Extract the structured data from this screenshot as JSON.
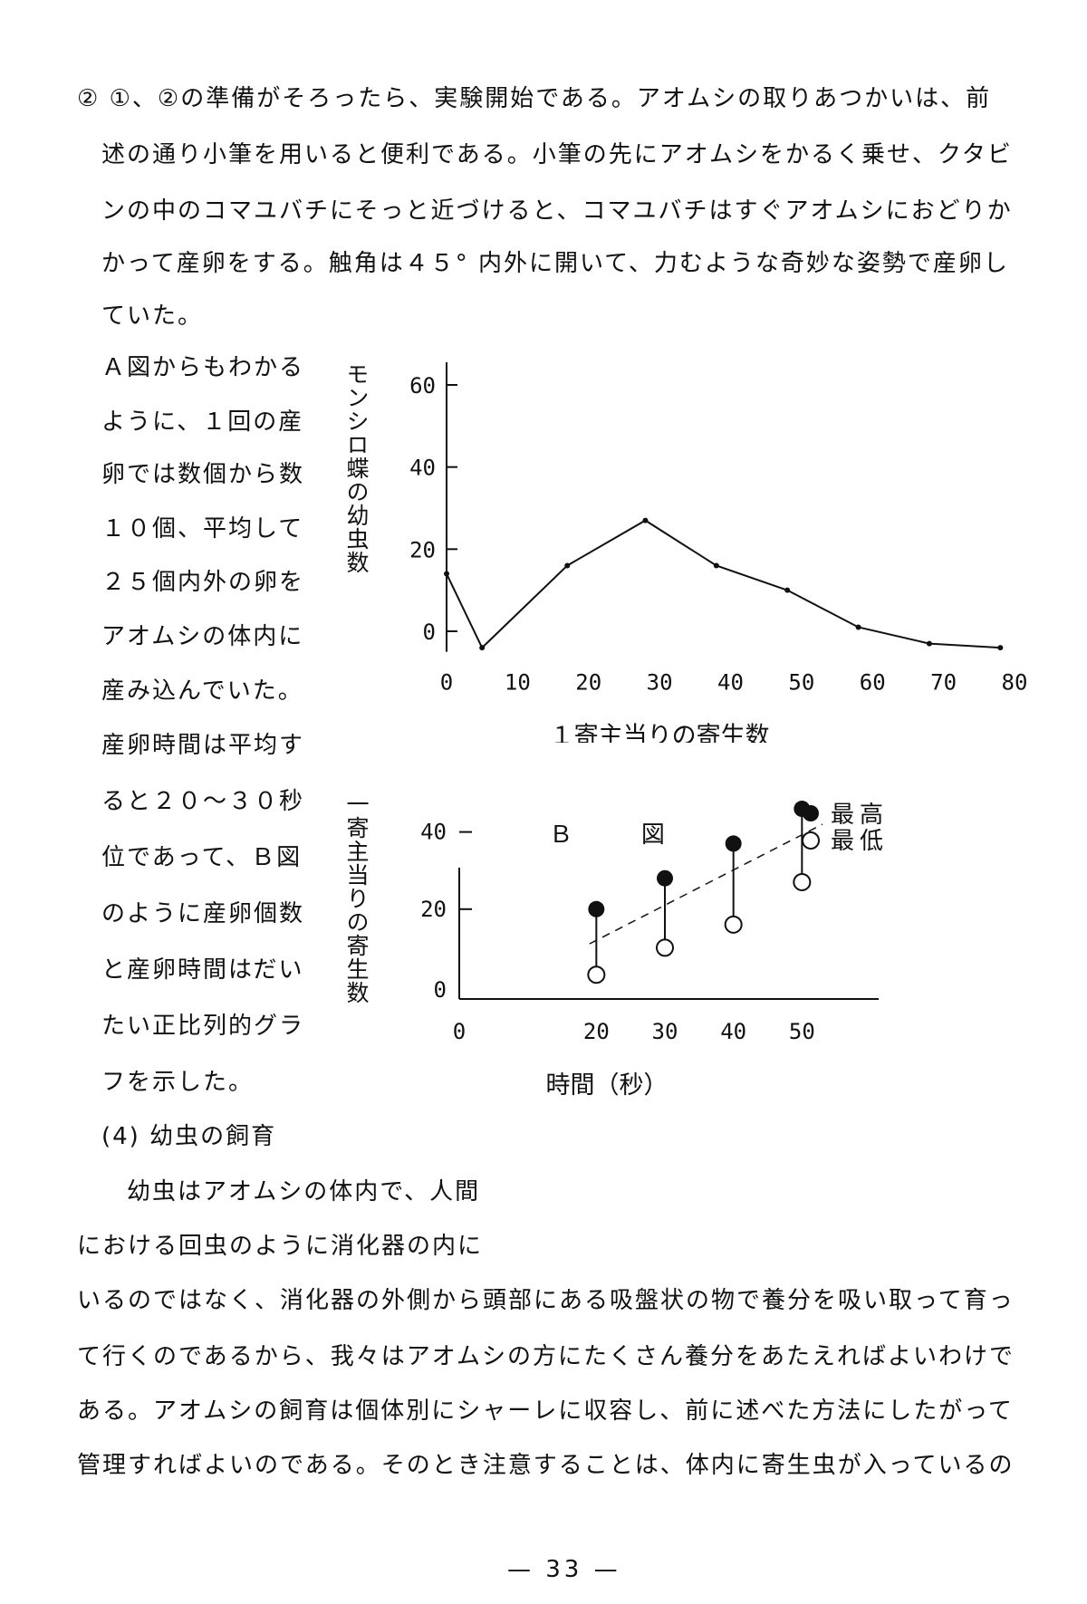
{
  "paragraph_top": [
    "② ①、②の準備がそろったら、実験開始である。アオムシの取りあつかいは、前",
    "述の通り小筆を用いると便利である。小筆の先にアオムシをかるく乗せ、クタビ",
    "ンの中のコマユバチにそっと近づけると、コマユバチはすぐアオムシにおどりか",
    "かって産卵をする。触角は４５° 内外に開いて、力むような奇妙な姿勢で産卵し",
    "ていた。"
  ],
  "side_text": [
    "Ａ図からもわかる",
    "ように、１回の産",
    "卵では数個から数",
    "１０個、平均して",
    "２５個内外の卵を",
    "アオムシの体内に",
    "産み込んでいた。",
    "産卵時間は平均す",
    "ると２０〜３０秒",
    "位であって、Ｂ図",
    "のように産卵個数",
    "と産卵時間はだい",
    "たい正比列的グラ",
    "フを示した。",
    "(4) 幼虫の飼育"
  ],
  "bottom_lines": [
    "幼虫はアオムシの体内で、人間",
    "における回虫のように消化器の内に",
    "いるのではなく、消化器の外側から頭部にある吸盤状の物で養分を吸い取って育っ",
    "て行くのであるから、我々はアオムシの方にたくさん養分をあたえればよいわけで",
    "ある。アオムシの飼育は個体別にシャーレに収容し、前に述べた方法にしたがって",
    "管理すればよいのである。そのとき注意することは、体内に寄生虫が入っているの"
  ],
  "page_number": "— 33 —",
  "chart_data": [
    {
      "type": "line",
      "title": "",
      "xlabel": "１寄主当りの寄生数",
      "ylabel": "モンシロ蝶の幼虫数",
      "xlim": [
        0,
        80
      ],
      "ylim": [
        0,
        60
      ],
      "x_ticks": [
        "0",
        "10",
        "20",
        "30",
        "40",
        "50",
        "60",
        "70",
        "80"
      ],
      "y_ticks": [
        "0",
        "20",
        "40",
        "60"
      ],
      "grid": false,
      "series": [
        {
          "x": [
            0,
            5,
            17,
            28,
            38,
            48,
            58,
            68,
            78
          ],
          "y": [
            14,
            -4,
            16,
            27,
            16,
            10,
            1,
            -3,
            -4
          ]
        }
      ]
    },
    {
      "type": "scatter",
      "title": "Ｂ 図",
      "xlabel": "時間（秒）",
      "ylabel": "一寄主当りの寄生数",
      "xlim": [
        0,
        60
      ],
      "ylim": [
        0,
        50
      ],
      "x_ticks": [
        "0",
        "20",
        "30",
        "40",
        "50"
      ],
      "y_ticks": [
        "0",
        "20",
        "40"
      ],
      "grid": false,
      "legend_position": "top-right",
      "series": [
        {
          "name": "最高",
          "marker": "filled-circle",
          "x": [
            20,
            30,
            40,
            50
          ],
          "y": [
            20,
            28,
            37,
            46
          ]
        },
        {
          "name": "最低",
          "marker": "open-circle",
          "x": [
            20,
            30,
            40,
            50
          ],
          "y": [
            3,
            10,
            16,
            27
          ]
        }
      ],
      "trend_line": {
        "style": "dashed",
        "x": [
          19,
          53
        ],
        "y": [
          11,
          42
        ]
      }
    }
  ]
}
